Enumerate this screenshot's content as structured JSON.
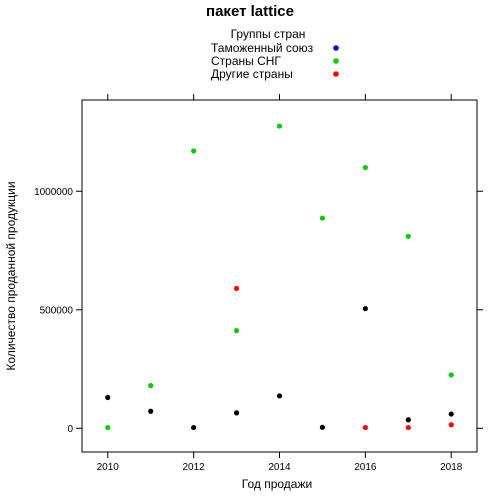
{
  "chart_data": {
    "type": "scatter",
    "title": "пакет lattice",
    "xlabel": "Год продажи",
    "ylabel": "Количество проданной продукции",
    "xlim": [
      2009.4,
      2018.6
    ],
    "ylim": [
      -100000,
      1385000
    ],
    "x_ticks": [
      2010,
      2012,
      2014,
      2016,
      2018
    ],
    "x_tick_labels": [
      "2010",
      "2012",
      "2014",
      "2016",
      "2018"
    ],
    "y_ticks": [
      0,
      500000,
      1000000
    ],
    "y_tick_labels": [
      "0",
      "500000",
      "1000000"
    ],
    "grid": false,
    "legend": {
      "title": "Группы стран",
      "placement": "top-center"
    },
    "series": [
      {
        "name": "Таможенный союз",
        "color": "#0000ff",
        "legend_color": "#0000ff",
        "point_color": "#000000",
        "points": [
          {
            "x": 2010,
            "y": 130000
          },
          {
            "x": 2011,
            "y": 72000
          },
          {
            "x": 2012,
            "y": 3000
          },
          {
            "x": 2013,
            "y": 65000
          },
          {
            "x": 2014,
            "y": 137000
          },
          {
            "x": 2015,
            "y": 4000
          },
          {
            "x": 2016,
            "y": 505000
          },
          {
            "x": 2017,
            "y": 36000
          },
          {
            "x": 2018,
            "y": 60000
          }
        ]
      },
      {
        "name": "Страны СНГ",
        "color": "#00cc00",
        "legend_color": "#00cc00",
        "point_color": "#00cc00",
        "points": [
          {
            "x": 2010,
            "y": 3000
          },
          {
            "x": 2011,
            "y": 180000
          },
          {
            "x": 2012,
            "y": 1170000
          },
          {
            "x": 2013,
            "y": 412000
          },
          {
            "x": 2014,
            "y": 1275000
          },
          {
            "x": 2015,
            "y": 887000
          },
          {
            "x": 2016,
            "y": 1100000
          },
          {
            "x": 2017,
            "y": 810000
          },
          {
            "x": 2018,
            "y": 225000
          }
        ]
      },
      {
        "name": "Другие страны",
        "color": "#ff0000",
        "legend_color": "#ff0000",
        "point_color": "#ff0000",
        "points": [
          {
            "x": 2013,
            "y": 590000
          },
          {
            "x": 2016,
            "y": 3000
          },
          {
            "x": 2017,
            "y": 3000
          },
          {
            "x": 2018,
            "y": 15000
          }
        ]
      }
    ]
  }
}
